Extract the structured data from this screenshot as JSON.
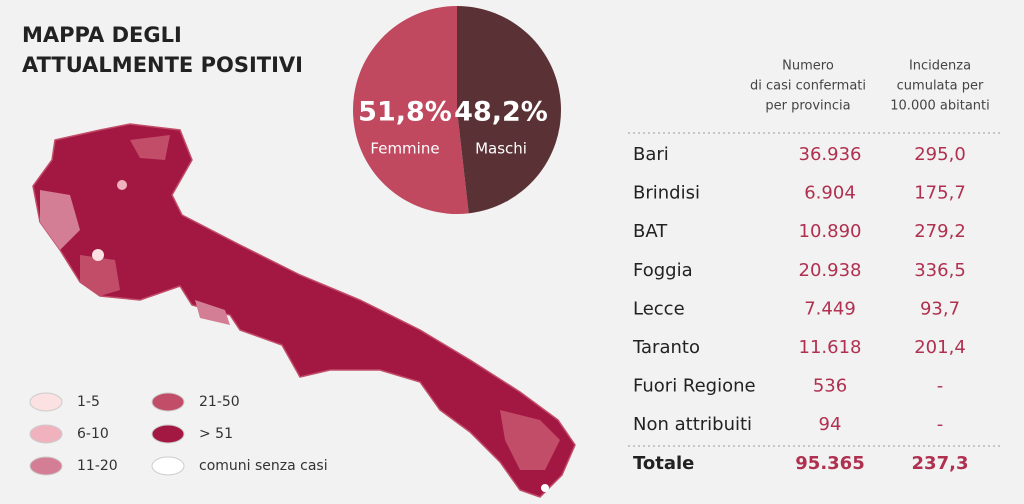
{
  "title": [
    "MAPPA DEGLI",
    "ATTUALMENTE POSITIVI"
  ],
  "chart_data": {
    "type": "pie",
    "categories": [
      "Femmine",
      "Maschi"
    ],
    "values": [
      51.8,
      48.2
    ],
    "value_labels": [
      "51,8%",
      "48,2%"
    ],
    "colors": [
      "#c0485f",
      "#5a3236"
    ]
  },
  "legend": [
    {
      "label": "1-5",
      "color": "#fbe1e2"
    },
    {
      "label": "6-10",
      "color": "#f0b3bd"
    },
    {
      "label": "11-20",
      "color": "#d47e95"
    },
    {
      "label": "21-50",
      "color": "#c24d68"
    },
    {
      "label": "> 51",
      "color": "#a31843"
    },
    {
      "label": "comuni senza casi",
      "color": "#ffffff"
    }
  ],
  "table": {
    "header": [
      [
        "Numero",
        "di casi confermati",
        "per provincia"
      ],
      [
        "Incidenza",
        "cumulata per",
        "10.000 abitanti"
      ]
    ],
    "rows": [
      [
        "Bari",
        "36.936",
        "295,0"
      ],
      [
        "Brindisi",
        "6.904",
        "175,7"
      ],
      [
        "BAT",
        "10.890",
        "279,2"
      ],
      [
        "Foggia",
        "20.938",
        "336,5"
      ],
      [
        "Lecce",
        "7.449",
        "93,7"
      ],
      [
        "Taranto",
        "11.618",
        "201,4"
      ],
      [
        "Fuori Regione",
        "536",
        "-"
      ],
      [
        "Non attribuiti",
        "94",
        "-"
      ]
    ],
    "total": [
      "Totale",
      "95.365",
      "237,3"
    ]
  }
}
